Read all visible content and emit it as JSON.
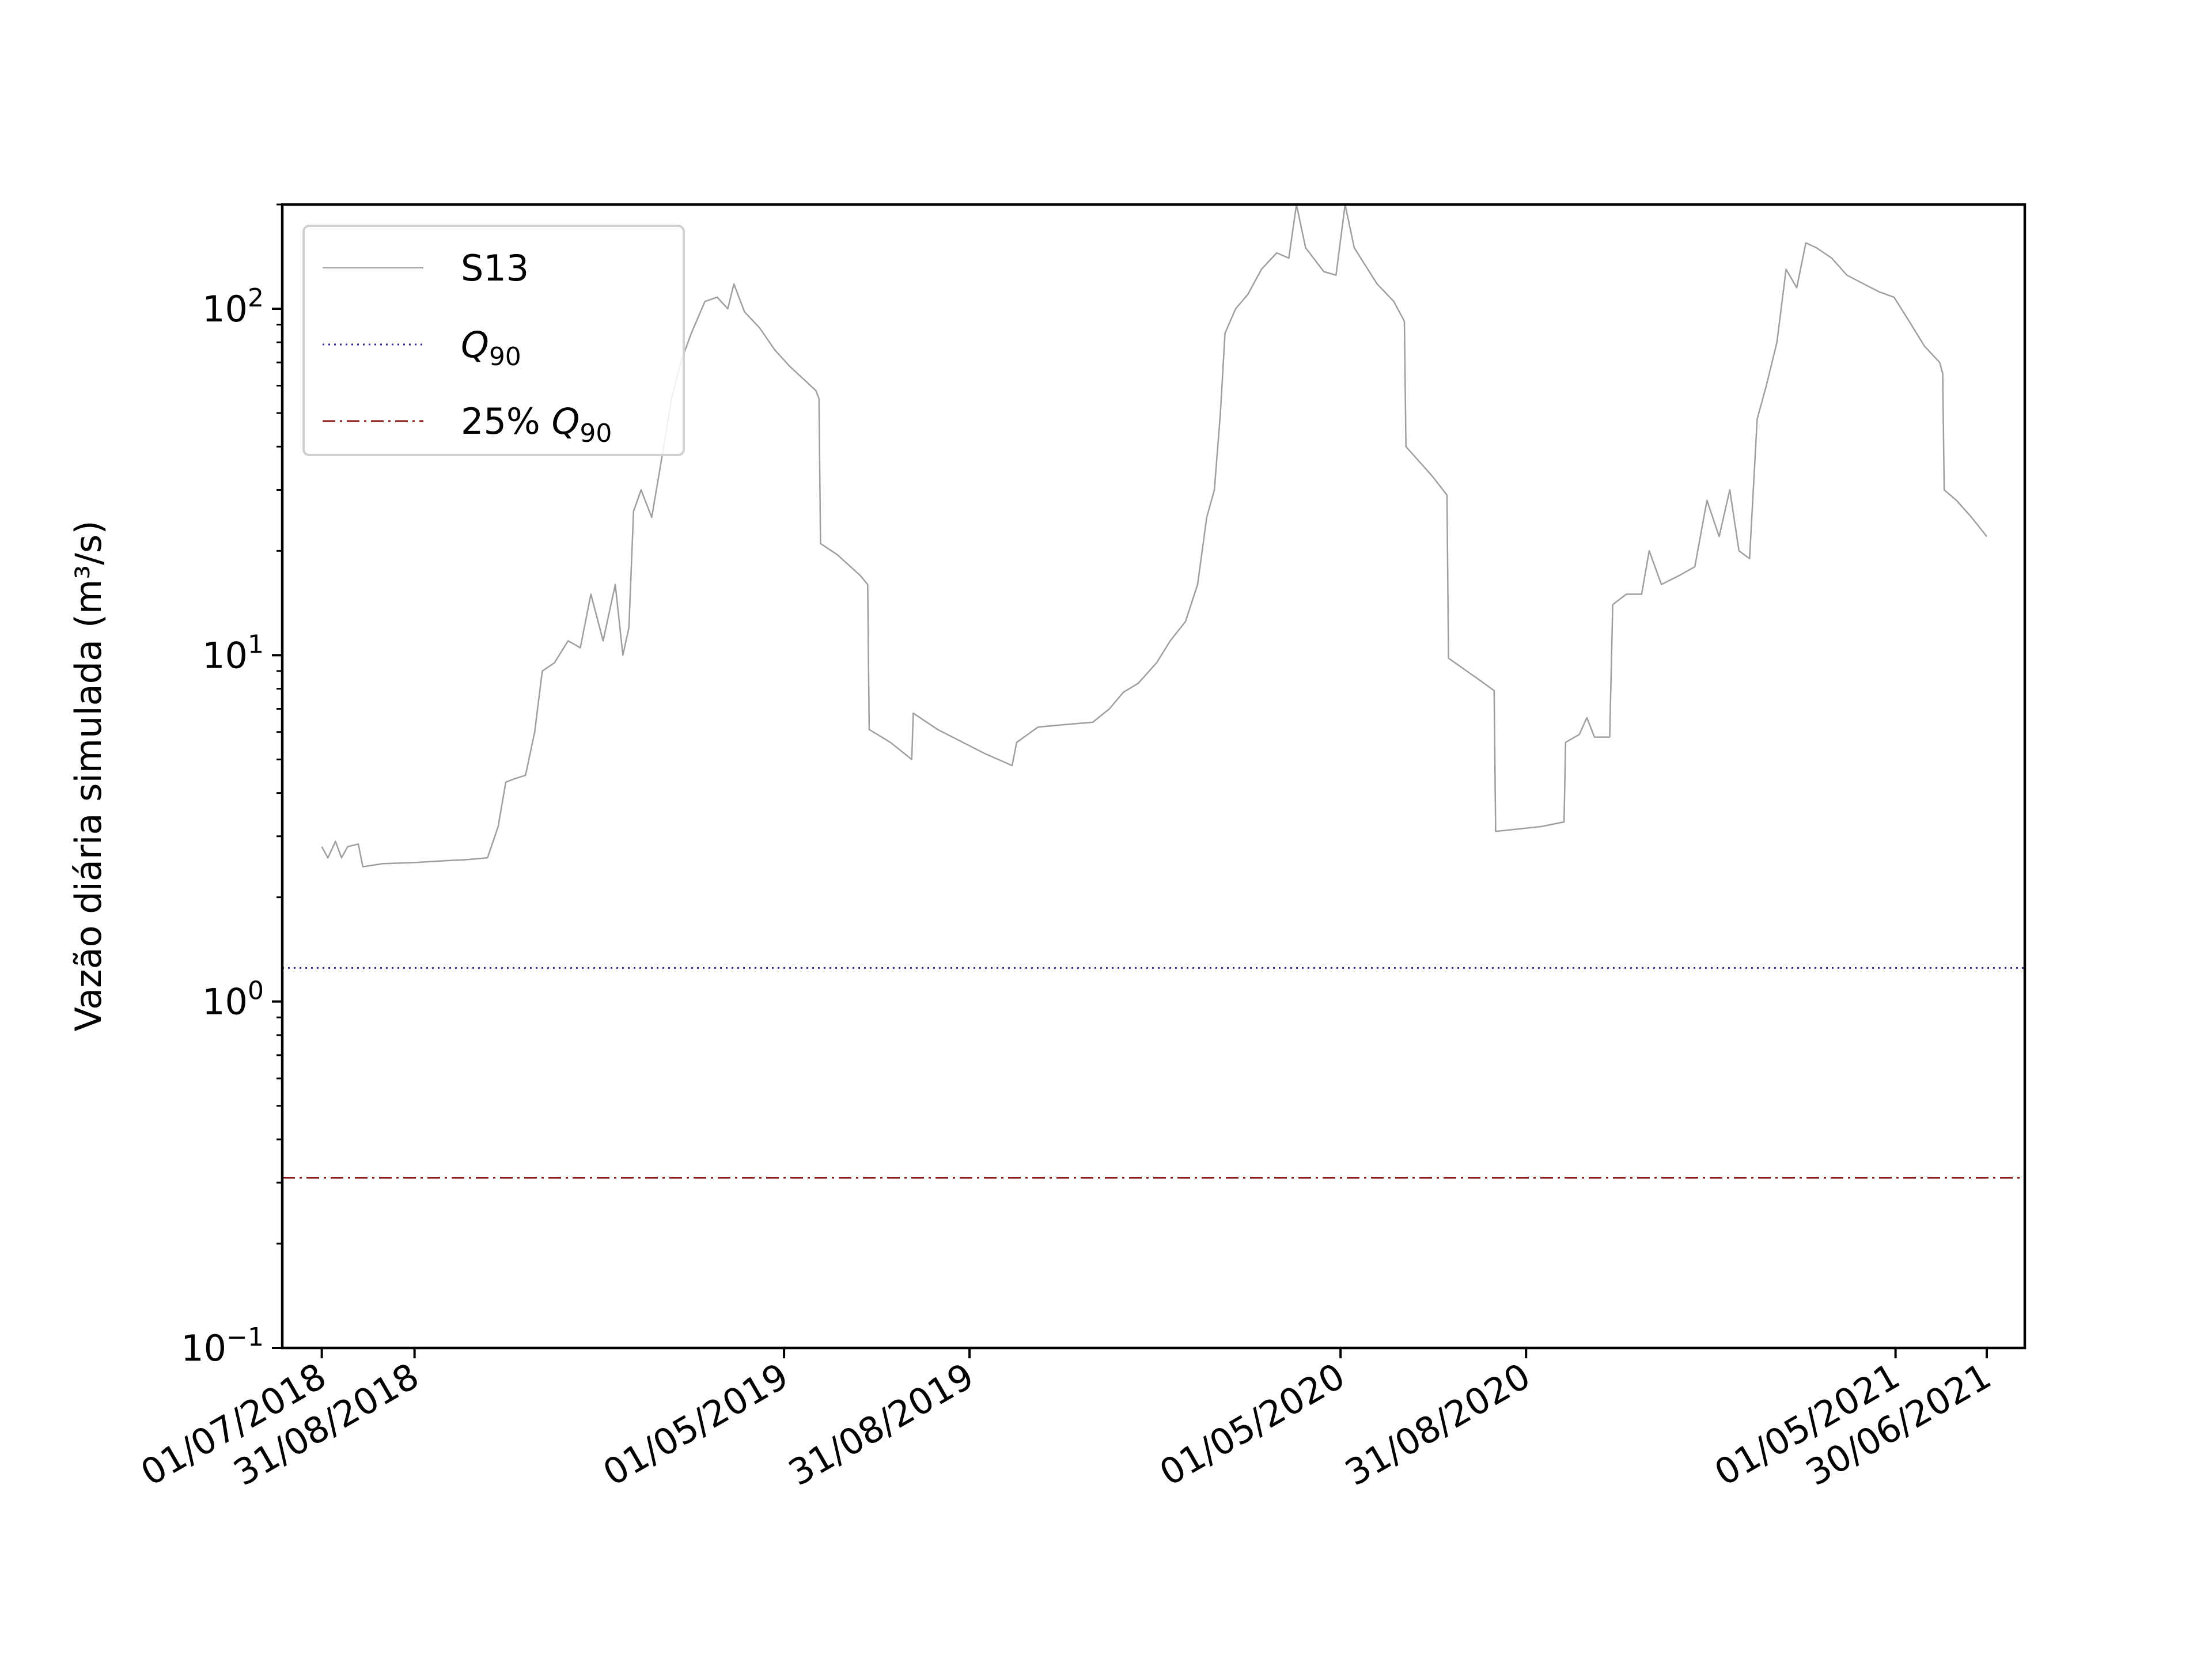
{
  "chart_data": {
    "type": "line",
    "ylabel": "Vazão diária simulada (m³/s)",
    "yscale": "log",
    "ylim": [
      0.1,
      200
    ],
    "xlim": [
      "2018-06-05",
      "2021-07-25"
    ],
    "y_ticks": [
      {
        "value": 0.1,
        "base": "10",
        "exp": "−1"
      },
      {
        "value": 1,
        "base": "10",
        "exp": "0"
      },
      {
        "value": 10,
        "base": "10",
        "exp": "1"
      },
      {
        "value": 100,
        "base": "10",
        "exp": "2"
      }
    ],
    "x_ticks": [
      {
        "date": "2018-07-01",
        "label": "01/07/2018"
      },
      {
        "date": "2018-08-31",
        "label": "31/08/2018"
      },
      {
        "date": "2019-05-01",
        "label": "01/05/2019"
      },
      {
        "date": "2019-08-31",
        "label": "31/08/2019"
      },
      {
        "date": "2020-05-01",
        "label": "01/05/2020"
      },
      {
        "date": "2020-08-31",
        "label": "31/08/2020"
      },
      {
        "date": "2021-05-01",
        "label": "01/05/2021"
      },
      {
        "date": "2021-06-30",
        "label": "30/06/2021"
      }
    ],
    "grid": false,
    "legend_position": "top-left",
    "series": [
      {
        "name": "S13",
        "color": "#9e9e9e",
        "style": "solid",
        "points": [
          [
            "2018-07-01",
            2.8
          ],
          [
            "2018-07-05",
            2.6
          ],
          [
            "2018-07-10",
            2.9
          ],
          [
            "2018-07-14",
            2.6
          ],
          [
            "2018-07-18",
            2.8
          ],
          [
            "2018-07-25",
            2.85
          ],
          [
            "2018-07-28",
            2.45
          ],
          [
            "2018-08-10",
            2.5
          ],
          [
            "2018-09-01",
            2.52
          ],
          [
            "2018-09-20",
            2.55
          ],
          [
            "2018-10-05",
            2.57
          ],
          [
            "2018-10-18",
            2.6
          ],
          [
            "2018-10-25",
            3.2
          ],
          [
            "2018-10-30",
            4.3
          ],
          [
            "2018-11-05",
            4.4
          ],
          [
            "2018-11-12",
            4.5
          ],
          [
            "2018-11-18",
            6.0
          ],
          [
            "2018-11-23",
            9.0
          ],
          [
            "2018-12-01",
            9.5
          ],
          [
            "2018-12-10",
            11
          ],
          [
            "2018-12-18",
            10.5
          ],
          [
            "2018-12-25",
            15
          ],
          [
            "2019-01-02",
            11
          ],
          [
            "2019-01-10",
            16
          ],
          [
            "2019-01-15",
            10
          ],
          [
            "2019-01-19",
            12
          ],
          [
            "2019-01-22",
            26
          ],
          [
            "2019-01-27",
            30
          ],
          [
            "2019-02-03",
            25
          ],
          [
            "2019-02-10",
            38
          ],
          [
            "2019-02-16",
            55
          ],
          [
            "2019-02-22",
            70
          ],
          [
            "2019-03-01",
            85
          ],
          [
            "2019-03-10",
            105
          ],
          [
            "2019-03-18",
            108
          ],
          [
            "2019-03-25",
            100
          ],
          [
            "2019-03-29",
            118
          ],
          [
            "2019-04-05",
            98
          ],
          [
            "2019-04-15",
            88
          ],
          [
            "2019-04-25",
            76
          ],
          [
            "2019-05-05",
            68
          ],
          [
            "2019-05-15",
            62
          ],
          [
            "2019-05-22",
            58
          ],
          [
            "2019-05-24",
            55
          ],
          [
            "2019-05-25",
            21
          ],
          [
            "2019-06-05",
            19.5
          ],
          [
            "2019-06-20",
            17
          ],
          [
            "2019-06-25",
            16
          ],
          [
            "2019-06-26",
            6.1
          ],
          [
            "2019-07-10",
            5.6
          ],
          [
            "2019-07-24",
            5.0
          ],
          [
            "2019-07-25",
            6.8
          ],
          [
            "2019-08-10",
            6.1
          ],
          [
            "2019-09-10",
            5.2
          ],
          [
            "2019-09-28",
            4.8
          ],
          [
            "2019-10-01",
            5.6
          ],
          [
            "2019-10-15",
            6.2
          ],
          [
            "2019-11-01",
            6.3
          ],
          [
            "2019-11-20",
            6.4
          ],
          [
            "2019-12-01",
            7.0
          ],
          [
            "2019-12-10",
            7.8
          ],
          [
            "2019-12-20",
            8.3
          ],
          [
            "2020-01-01",
            9.5
          ],
          [
            "2020-01-10",
            11
          ],
          [
            "2020-01-20",
            12.5
          ],
          [
            "2020-01-28",
            16
          ],
          [
            "2020-02-03",
            25
          ],
          [
            "2020-02-08",
            30
          ],
          [
            "2020-02-12",
            50
          ],
          [
            "2020-02-15",
            85
          ],
          [
            "2020-02-22",
            100
          ],
          [
            "2020-03-01",
            110
          ],
          [
            "2020-03-10",
            130
          ],
          [
            "2020-03-20",
            145
          ],
          [
            "2020-03-28",
            140
          ],
          [
            "2020-04-02",
            200
          ],
          [
            "2020-04-08",
            150
          ],
          [
            "2020-04-20",
            128
          ],
          [
            "2020-04-28",
            125
          ],
          [
            "2020-05-04",
            200
          ],
          [
            "2020-05-10",
            150
          ],
          [
            "2020-05-25",
            118
          ],
          [
            "2020-06-05",
            105
          ],
          [
            "2020-06-12",
            92
          ],
          [
            "2020-06-13",
            40
          ],
          [
            "2020-06-30",
            33
          ],
          [
            "2020-07-10",
            29
          ],
          [
            "2020-07-11",
            9.8
          ],
          [
            "2020-07-31",
            8.5
          ],
          [
            "2020-08-10",
            7.9
          ],
          [
            "2020-08-11",
            3.1
          ],
          [
            "2020-09-10",
            3.2
          ],
          [
            "2020-09-25",
            3.3
          ],
          [
            "2020-09-26",
            5.6
          ],
          [
            "2020-10-05",
            5.9
          ],
          [
            "2020-10-10",
            6.6
          ],
          [
            "2020-10-15",
            5.8
          ],
          [
            "2020-10-25",
            5.8
          ],
          [
            "2020-10-27",
            14
          ],
          [
            "2020-11-05",
            15
          ],
          [
            "2020-11-15",
            15
          ],
          [
            "2020-11-20",
            20
          ],
          [
            "2020-11-28",
            16
          ],
          [
            "2020-12-10",
            17
          ],
          [
            "2020-12-20",
            18
          ],
          [
            "2020-12-28",
            28
          ],
          [
            "2021-01-05",
            22
          ],
          [
            "2021-01-12",
            30
          ],
          [
            "2021-01-18",
            20
          ],
          [
            "2021-01-25",
            19
          ],
          [
            "2021-01-30",
            48
          ],
          [
            "2021-02-05",
            60
          ],
          [
            "2021-02-12",
            80
          ],
          [
            "2021-02-18",
            130
          ],
          [
            "2021-02-25",
            115
          ],
          [
            "2021-03-03",
            155
          ],
          [
            "2021-03-10",
            150
          ],
          [
            "2021-03-20",
            140
          ],
          [
            "2021-03-30",
            125
          ],
          [
            "2021-04-10",
            118
          ],
          [
            "2021-04-20",
            112
          ],
          [
            "2021-04-30",
            108
          ],
          [
            "2021-05-10",
            92
          ],
          [
            "2021-05-20",
            78
          ],
          [
            "2021-05-30",
            70
          ],
          [
            "2021-06-01",
            65
          ],
          [
            "2021-06-02",
            30
          ],
          [
            "2021-06-10",
            28
          ],
          [
            "2021-06-20",
            25
          ],
          [
            "2021-06-30",
            22
          ]
        ]
      },
      {
        "name": "Q",
        "name_subscript": "90",
        "color": "#2b2b8f",
        "style": "dotted",
        "constant": 1.25
      },
      {
        "name": "25% Q",
        "name_subscript": "90",
        "color": "#8b1a1a",
        "style": "dashdot",
        "constant": 0.31
      }
    ]
  }
}
